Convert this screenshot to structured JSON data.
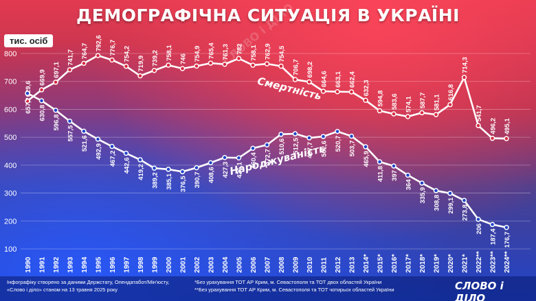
{
  "title": "ДЕМОГРАФІЧНА СИТУАЦІЯ В УКРАЇНІ",
  "unit_badge": "тис. осіб",
  "footer": {
    "source": "Інфографіку створено за даними Держстату, Опендатабот/Мін'юсту, «Слово і діло» станом на 13 травня 2025 року",
    "note_single": "*Без урахування ТОТ АР Крим, м. Севастополя та ТОТ двох областей України",
    "note_double": "**Без урахування ТОТ АР Крим, м. Севастополя та ТОТ чотирьох областей України",
    "logo": "СЛОВО і ДІЛО",
    "watermark": "СЛОВО і ДІЛО"
  },
  "colors": {
    "deaths_line": "#ffffff",
    "births_line": "#ffffff",
    "top_red": "#e23a50",
    "bottom_blue": "#1f44c9"
  },
  "chart_data": {
    "type": "line",
    "x": [
      "1990",
      "1991",
      "1992",
      "1993",
      "1994",
      "1995",
      "1996",
      "1997",
      "1998",
      "1999",
      "2000",
      "2001",
      "2002",
      "2003",
      "2004",
      "2005",
      "2006",
      "2007",
      "2008",
      "2009",
      "2010",
      "2011",
      "2012",
      "2013",
      "2014*",
      "2015*",
      "2016*",
      "2017*",
      "2018*",
      "2019*",
      "2020*",
      "2021*",
      "2022**",
      "2023**",
      "2024**"
    ],
    "yticks": [
      100,
      200,
      300,
      400,
      500,
      600,
      700,
      800
    ],
    "ylim": [
      100,
      800
    ],
    "grid": true,
    "series": [
      {
        "name": "Смертність",
        "values": [
          629.6,
          669.9,
          697.1,
          741.7,
          764.7,
          792.6,
          776.7,
          754.2,
          719.9,
          739.2,
          758.1,
          746,
          754.9,
          765.4,
          761.3,
          782,
          758.1,
          762.9,
          754.5,
          706.7,
          698.2,
          664.6,
          663.1,
          662.4,
          632.3,
          594.8,
          583.6,
          574.1,
          587.7,
          581.1,
          616.8,
          714.3,
          541.7,
          496.2,
          495.1
        ]
      },
      {
        "name": "Народжуваність",
        "values": [
          657.2,
          630.8,
          596.8,
          557.5,
          521.6,
          492.9,
          467.2,
          442.6,
          419.2,
          389.2,
          385.1,
          376.5,
          390.7,
          408.6,
          427.3,
          426.1,
          460.4,
          472.7,
          510.6,
          512.5,
          497.7,
          502.6,
          520.7,
          503.7,
          465.9,
          411.8,
          397,
          364,
          335.9,
          308.8,
          299.1,
          273.8,
          206,
          187.4,
          176.7
        ]
      }
    ]
  }
}
